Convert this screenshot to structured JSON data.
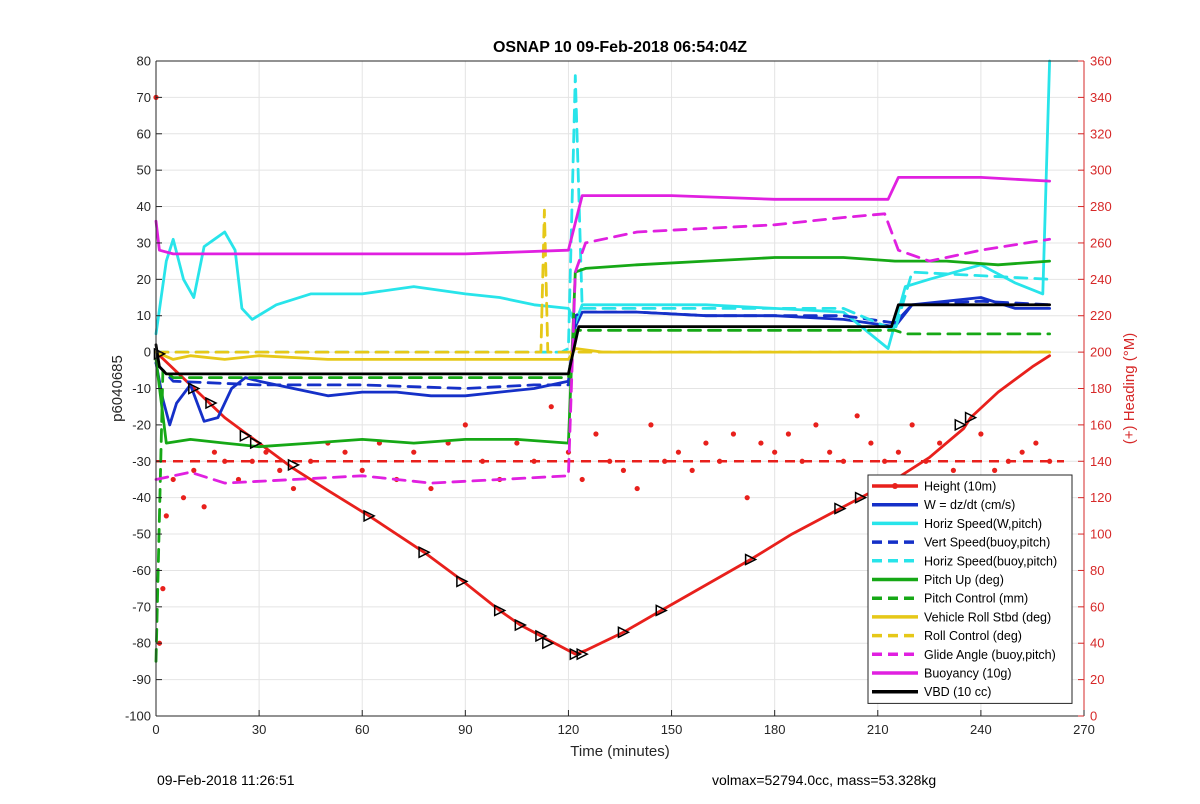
{
  "footer": {
    "timestamp": "09-Feb-2018 11:26:51",
    "mass_info": "volmax=52794.0cc, mass=53.328kg"
  },
  "chart_data": {
    "type": "line",
    "title": "OSNAP 10 09-Feb-2018 06:54:04Z",
    "xlabel": "Time (minutes)",
    "ylabel": "p6040685",
    "ylabel_right": "(+) Heading (°M)",
    "xlim": [
      0,
      270
    ],
    "ylim": [
      -100,
      80
    ],
    "ylim_right": [
      0,
      360
    ],
    "grid": true,
    "legend_position": "bottom-right",
    "xticks": [
      "0",
      "30",
      "60",
      "90",
      "120",
      "150",
      "180",
      "210",
      "240",
      "270"
    ],
    "yticks": [
      "-100",
      "-90",
      "-80",
      "-70",
      "-60",
      "-50",
      "-40",
      "-30",
      "-20",
      "-10",
      "0",
      "10",
      "20",
      "30",
      "40",
      "50",
      "60",
      "70",
      "80"
    ],
    "yticks_right": [
      "0",
      "20",
      "40",
      "60",
      "80",
      "100",
      "120",
      "140",
      "160",
      "180",
      "200",
      "220",
      "240",
      "260",
      "280",
      "300",
      "320",
      "340",
      "360"
    ],
    "colors": {
      "red": "#e8201c",
      "blue": "#1530c8",
      "cyan": "#28e4ea",
      "green": "#16a816",
      "yellow": "#e6c818",
      "magenta": "#e020e0",
      "black": "#000000",
      "heading_axis": "#d62828"
    },
    "series": [
      {
        "name": "Height (10m)",
        "color": "red",
        "dash": false,
        "x": [
          0,
          10,
          20,
          30,
          40,
          50,
          62,
          78,
          88,
          100,
          106,
          114,
          122,
          125,
          136,
          147,
          160,
          173,
          185,
          199,
          205,
          215,
          225,
          235,
          237,
          245,
          255,
          260
        ],
        "y": [
          0,
          -9,
          -18,
          -25,
          -32,
          -38,
          -45,
          -55,
          -62,
          -71,
          -75,
          -79,
          -83,
          -82,
          -77,
          -71,
          -64,
          -57,
          -50,
          -43,
          -40,
          -35,
          -29,
          -21,
          -18,
          -11,
          -4,
          -1
        ]
      },
      {
        "name": "W = dz/dt (cm/s)",
        "color": "blue",
        "dash": false,
        "x": [
          0,
          2,
          4,
          6,
          10,
          14,
          18,
          22,
          26,
          30,
          40,
          50,
          60,
          70,
          80,
          90,
          100,
          110,
          120,
          122,
          124,
          140,
          160,
          180,
          200,
          215,
          220,
          230,
          240,
          250,
          260
        ],
        "y": [
          -3,
          -13,
          -20,
          -14,
          -9,
          -19,
          -18,
          -10,
          -7,
          -8,
          -10,
          -12,
          -11,
          -11,
          -12,
          -12,
          -11,
          -10,
          -8,
          7,
          11,
          11,
          10,
          10,
          9,
          7,
          13,
          14,
          15,
          12,
          12
        ]
      },
      {
        "name": "Horiz Speed(W,pitch)",
        "color": "cyan",
        "dash": false,
        "x": [
          0,
          3,
          5,
          8,
          11,
          14,
          17,
          20,
          23,
          25,
          28,
          35,
          45,
          60,
          75,
          90,
          100,
          110,
          120,
          122,
          124,
          140,
          160,
          180,
          200,
          213,
          218,
          225,
          240,
          250,
          258,
          260
        ],
        "y": [
          5,
          25,
          31,
          20,
          15,
          29,
          31,
          33,
          28,
          12,
          9,
          13,
          16,
          16,
          18,
          16,
          15,
          13,
          12,
          8,
          13,
          13,
          13,
          12,
          11,
          1,
          18,
          20,
          24,
          19,
          16,
          80
        ]
      },
      {
        "name": "Vert Speed(buoy,pitch)",
        "color": "blue",
        "dash": true,
        "x": [
          0,
          5,
          30,
          60,
          90,
          110,
          120,
          122,
          124,
          140,
          160,
          200,
          215,
          220,
          240,
          260
        ],
        "y": [
          -3,
          -8,
          -9,
          -9,
          -10,
          -9,
          -9,
          10,
          11,
          11,
          10,
          10,
          8,
          13,
          14,
          13
        ]
      },
      {
        "name": "Horiz Speed(buoy,pitch)",
        "color": "cyan",
        "dash": true,
        "x": [
          0,
          30,
          60,
          90,
          118,
          120,
          122,
          124,
          140,
          200,
          215,
          220,
          260
        ],
        "y": [
          0,
          0,
          0,
          0,
          0,
          1,
          76,
          12,
          12,
          12,
          6,
          22,
          20
        ]
      },
      {
        "name": "Pitch Up (deg)",
        "color": "green",
        "dash": false,
        "x": [
          0,
          3,
          10,
          20,
          30,
          45,
          60,
          75,
          90,
          105,
          120,
          122,
          125,
          140,
          160,
          180,
          200,
          215,
          230,
          245,
          260
        ],
        "y": [
          -2,
          -25,
          -24,
          -25,
          -26,
          -25,
          -24,
          -25,
          -24,
          -24,
          -25,
          22,
          23,
          24,
          25,
          26,
          26,
          25,
          25,
          24,
          25
        ]
      },
      {
        "name": "Pitch Control (mm)",
        "color": "green",
        "dash": true,
        "x": [
          0,
          2,
          5,
          30,
          60,
          90,
          120,
          122,
          215,
          218,
          260
        ],
        "y": [
          -85,
          -5,
          -7,
          -7,
          -7,
          -7,
          -7,
          6,
          6,
          5,
          5
        ]
      },
      {
        "name": "Vehicle Roll Stbd (deg)",
        "color": "yellow",
        "dash": false,
        "x": [
          0,
          5,
          10,
          20,
          30,
          50,
          70,
          90,
          110,
          120,
          122,
          130,
          160,
          190,
          220,
          240,
          260
        ],
        "y": [
          0,
          -2,
          -1,
          -2,
          -1,
          -2,
          -2,
          -2,
          -2,
          -2,
          1,
          0,
          0,
          0,
          0,
          0,
          0
        ]
      },
      {
        "name": "Roll Control (deg)",
        "color": "yellow",
        "dash": true,
        "x": [
          0,
          30,
          60,
          90,
          112,
          113,
          114,
          116,
          120,
          260
        ],
        "y": [
          0,
          0,
          0,
          0,
          0,
          39,
          0,
          0,
          0,
          0
        ]
      },
      {
        "name": "Glide Angle (buoy,pitch)",
        "color": "magenta",
        "dash": true,
        "x": [
          0,
          10,
          20,
          40,
          60,
          80,
          100,
          120,
          122,
          125,
          140,
          160,
          180,
          200,
          212,
          216,
          225,
          240,
          260
        ],
        "y": [
          -35,
          -33,
          -36,
          -35,
          -34,
          -36,
          -35,
          -34,
          22,
          30,
          33,
          34,
          35,
          37,
          38,
          28,
          25,
          28,
          31
        ]
      },
      {
        "name": "Buoyancy (10g)",
        "color": "magenta",
        "dash": false,
        "x": [
          0,
          1,
          5,
          30,
          60,
          90,
          120,
          124,
          150,
          180,
          213,
          216,
          240,
          260
        ],
        "y": [
          36,
          28,
          27,
          27,
          27,
          27,
          28,
          43,
          43,
          42,
          42,
          48,
          48,
          47
        ]
      },
      {
        "name": "VBD (10 cc)",
        "color": "black",
        "dash": false,
        "x": [
          0,
          1,
          3,
          30,
          60,
          90,
          120,
          123,
          150,
          180,
          214,
          216,
          240,
          260
        ],
        "y": [
          2,
          -4,
          -6,
          -6,
          -6,
          -6,
          -6,
          7,
          7,
          7,
          7,
          13,
          13,
          13
        ]
      }
    ],
    "heading_series": {
      "axis": "right",
      "mean_line": 140,
      "x": [
        0,
        1,
        2,
        3,
        5,
        8,
        11,
        14,
        17,
        20,
        24,
        28,
        32,
        36,
        40,
        45,
        50,
        55,
        60,
        65,
        70,
        75,
        80,
        85,
        90,
        95,
        100,
        105,
        110,
        115,
        120,
        124,
        128,
        132,
        136,
        140,
        144,
        148,
        152,
        156,
        160,
        164,
        168,
        172,
        176,
        180,
        184,
        188,
        192,
        196,
        200,
        204,
        208,
        212,
        216,
        220,
        224,
        228,
        232,
        236,
        240,
        244,
        248,
        252,
        256,
        260
      ],
      "y": [
        340,
        40,
        70,
        110,
        130,
        120,
        135,
        115,
        145,
        140,
        130,
        140,
        145,
        135,
        125,
        140,
        150,
        145,
        135,
        150,
        130,
        145,
        125,
        150,
        160,
        140,
        130,
        150,
        140,
        170,
        145,
        130,
        155,
        140,
        135,
        125,
        160,
        140,
        145,
        135,
        150,
        140,
        155,
        120,
        150,
        145,
        155,
        140,
        160,
        145,
        140,
        165,
        150,
        140,
        145,
        160,
        140,
        150,
        135,
        130,
        155,
        135,
        140,
        145,
        150,
        140
      ]
    },
    "legend": [
      {
        "label": "Height (10m)",
        "color": "red",
        "dash": false,
        "marker": true
      },
      {
        "label": "W = dz/dt (cm/s)",
        "color": "blue",
        "dash": false
      },
      {
        "label": "Horiz Speed(W,pitch)",
        "color": "cyan",
        "dash": false
      },
      {
        "label": "Vert Speed(buoy,pitch)",
        "color": "blue",
        "dash": true
      },
      {
        "label": "Horiz Speed(buoy,pitch)",
        "color": "cyan",
        "dash": true
      },
      {
        "label": "Pitch Up (deg)",
        "color": "green",
        "dash": false
      },
      {
        "label": "Pitch Control (mm)",
        "color": "green",
        "dash": true
      },
      {
        "label": "Vehicle Roll Stbd (deg)",
        "color": "yellow",
        "dash": false
      },
      {
        "label": "Roll Control (deg)",
        "color": "yellow",
        "dash": true
      },
      {
        "label": "Glide Angle (buoy,pitch)",
        "color": "magenta",
        "dash": true
      },
      {
        "label": "Buoyancy (10g)",
        "color": "magenta",
        "dash": false
      },
      {
        "label": "VBD (10 cc)",
        "color": "black",
        "dash": false
      }
    ],
    "markers": {
      "x": [
        1,
        11,
        16,
        26,
        29,
        40,
        62,
        78,
        89,
        100,
        106,
        112,
        114,
        122,
        124,
        136,
        147,
        173,
        199,
        205,
        234,
        237
      ],
      "y": [
        -0.5,
        -10,
        -14,
        -23,
        -25,
        -31,
        -45,
        -55,
        -63,
        -71,
        -75,
        -78,
        -80,
        -83,
        -83,
        -77,
        -71,
        -57,
        -43,
        -40,
        -20,
        -18
      ]
    }
  }
}
